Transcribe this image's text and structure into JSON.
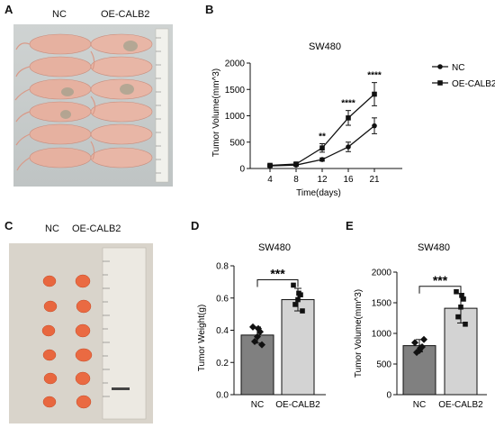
{
  "panels": {
    "a": {
      "letter": "A",
      "labels": [
        "NC",
        "OE-CALB2"
      ]
    },
    "b": {
      "letter": "B"
    },
    "c": {
      "letter": "C",
      "labels": [
        "NC",
        "OE-CALB2"
      ]
    },
    "d": {
      "letter": "D"
    },
    "e": {
      "letter": "E"
    }
  },
  "colors": {
    "nc_bar": "#808080",
    "oe_bar": "#d3d3d3",
    "line": "#111111",
    "tumor": "#e8673f",
    "skin": "#e8b4a4"
  },
  "chart_data": [
    {
      "id": "B",
      "type": "line",
      "title": "SW480",
      "xlabel": "Time(days)",
      "ylabel": "Tumor Volume(mm^3)",
      "categories": [
        "4",
        "8",
        "12",
        "16",
        "21"
      ],
      "ylim": [
        0,
        2000
      ],
      "yticks": [
        0,
        500,
        1000,
        1500,
        2000
      ],
      "series": [
        {
          "name": "NC",
          "marker": "circle",
          "values": [
            50,
            65,
            170,
            410,
            810
          ],
          "errors": [
            15,
            20,
            30,
            90,
            150
          ]
        },
        {
          "name": "OE-CALB2",
          "marker": "square",
          "values": [
            60,
            85,
            390,
            960,
            1410
          ],
          "errors": [
            20,
            25,
            80,
            140,
            220
          ]
        }
      ],
      "significance": [
        "",
        "",
        "**",
        "****",
        "****"
      ],
      "legend": "right"
    },
    {
      "id": "D",
      "type": "bar",
      "title": "SW480",
      "ylabel": "Tumor Weight(g)",
      "categories": [
        "NC",
        "OE-CALB2"
      ],
      "values": [
        0.37,
        0.59
      ],
      "errors": [
        0.05,
        0.07
      ],
      "points": [
        [
          0.42,
          0.39,
          0.36,
          0.33,
          0.31,
          0.41
        ],
        [
          0.68,
          0.62,
          0.59,
          0.56,
          0.52,
          0.63
        ]
      ],
      "ylim": [
        0,
        0.8
      ],
      "yticks": [
        "0.0",
        "0.2",
        "0.4",
        "0.6",
        "0.8"
      ],
      "significance": "***"
    },
    {
      "id": "E",
      "type": "bar",
      "title": "SW480",
      "ylabel": "Tumor Volume(mm^3)",
      "categories": [
        "NC",
        "OE-CALB2"
      ],
      "values": [
        800,
        1410
      ],
      "errors": [
        100,
        240
      ],
      "points": [
        [
          850,
          780,
          720,
          690,
          900,
          760
        ],
        [
          1680,
          1560,
          1430,
          1270,
          1150,
          1620
        ]
      ],
      "ylim": [
        0,
        2000
      ],
      "yticks": [
        "0",
        "500",
        "1000",
        "1500",
        "2000"
      ],
      "significance": "***"
    }
  ]
}
